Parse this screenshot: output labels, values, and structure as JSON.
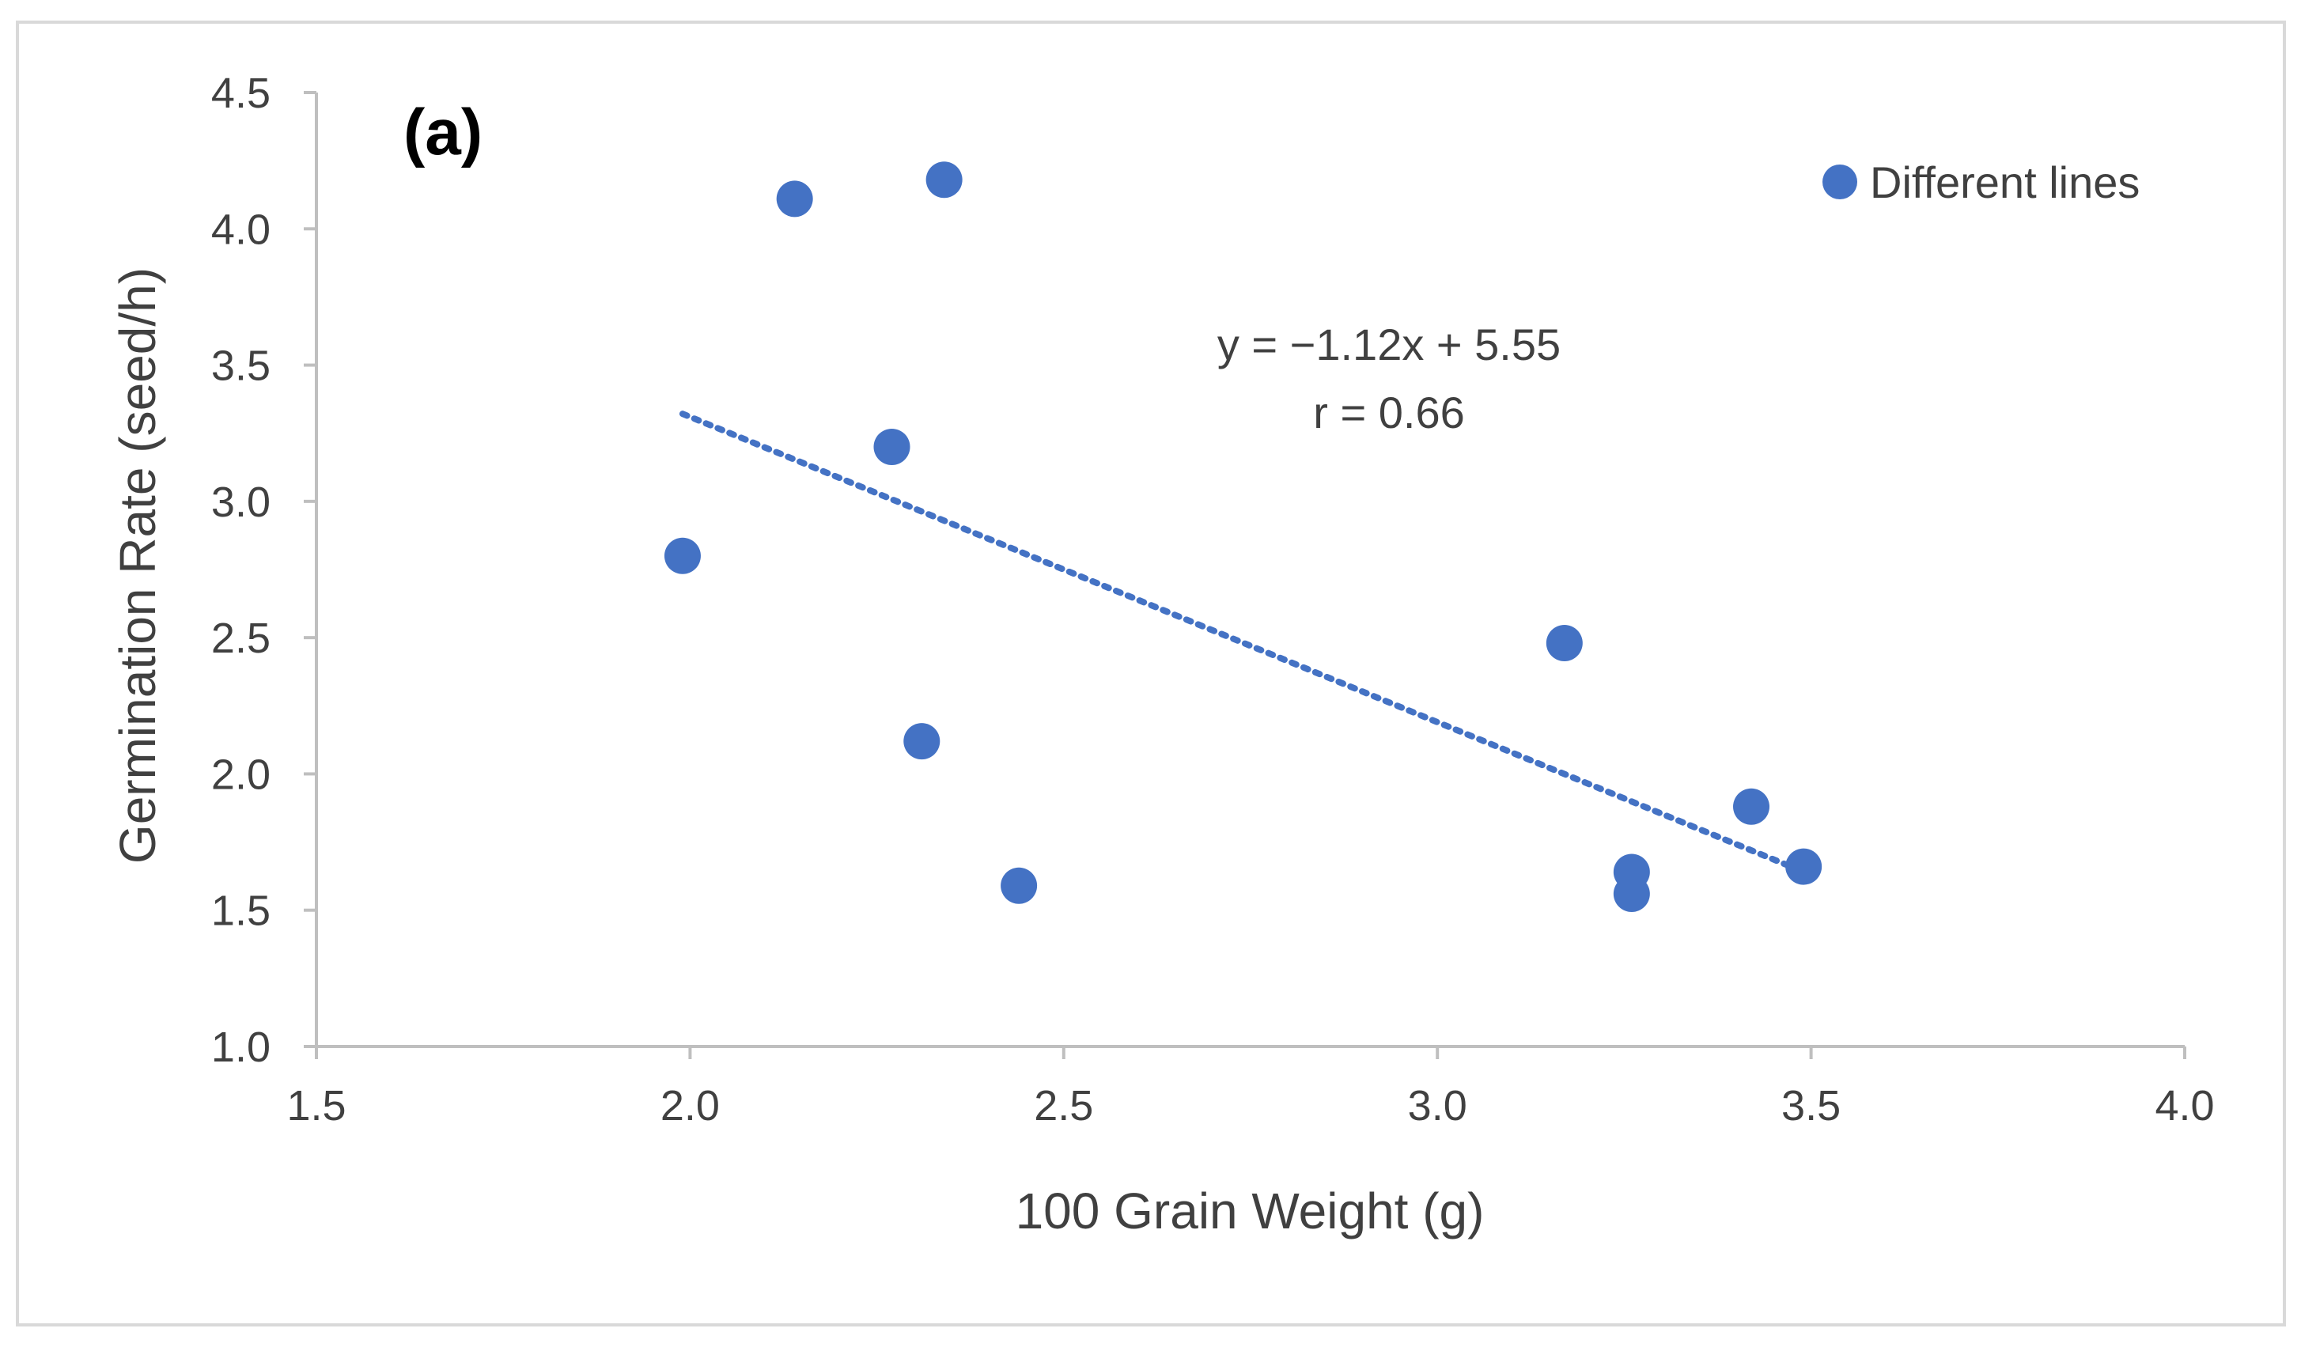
{
  "chart_data": {
    "type": "scatter",
    "panel_label": "(a)",
    "xlabel": "100 Grain Weight (g)",
    "ylabel": "Germination Rate (seed/h)",
    "xlim": [
      1.5,
      4.0
    ],
    "ylim": [
      1.0,
      4.5
    ],
    "x_ticks": [
      1.5,
      2.0,
      2.5,
      3.0,
      3.5,
      4.0
    ],
    "x_tick_labels": [
      "1.5",
      "2.0",
      "2.5",
      "3.0",
      "3.5",
      "4.0"
    ],
    "y_ticks": [
      1.0,
      1.5,
      2.0,
      2.5,
      3.0,
      3.5,
      4.0,
      4.5
    ],
    "y_tick_labels": [
      "1.0",
      "1.5",
      "2.0",
      "2.5",
      "3.0",
      "3.5",
      "4.0",
      "4.5"
    ],
    "grid": false,
    "legend": {
      "position": "top-right",
      "entries": [
        "Different lines"
      ]
    },
    "series": [
      {
        "name": "Different lines",
        "color": "#4472C4",
        "points": [
          {
            "x": 1.99,
            "y": 2.8
          },
          {
            "x": 2.14,
            "y": 4.11
          },
          {
            "x": 2.27,
            "y": 3.2
          },
          {
            "x": 2.31,
            "y": 2.12
          },
          {
            "x": 2.34,
            "y": 4.18
          },
          {
            "x": 2.44,
            "y": 1.59
          },
          {
            "x": 3.17,
            "y": 2.48
          },
          {
            "x": 3.26,
            "y": 1.64
          },
          {
            "x": 3.26,
            "y": 1.56
          },
          {
            "x": 3.42,
            "y": 1.88
          },
          {
            "x": 3.49,
            "y": 1.66
          }
        ]
      }
    ],
    "trendline": {
      "type": "linear",
      "style": "dotted",
      "color": "#4472C4",
      "slope": -1.12,
      "intercept": 5.55,
      "x_range": [
        1.99,
        3.49
      ]
    },
    "annotations": [
      "y = −1.12x + 5.55",
      "r = 0.66"
    ]
  }
}
